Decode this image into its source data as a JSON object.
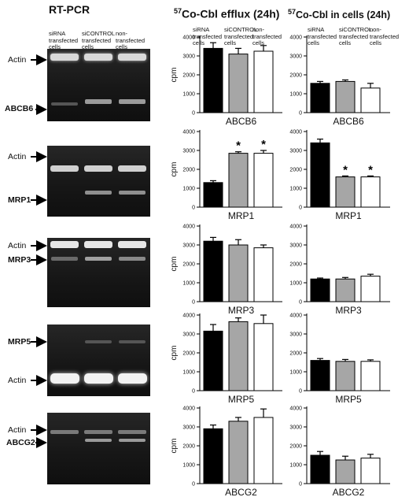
{
  "headers": {
    "rtpcr": "RT-PCR",
    "efflux_sup": "57",
    "efflux": "Co-Cbl efflux (24h)",
    "cells_sup": "57",
    "cells": "Co-Cbl in cells (24h)"
  },
  "column_labels": {
    "sirna": "siRNA\ntransfected\ncells",
    "sicontrol": "siCONTROL\ntransfected\ncells",
    "non": "non-\ntransfected\ncells"
  },
  "gel_labels": {
    "actin": "Actin",
    "abcb6": "ABCB6",
    "mrp1": "MRP1",
    "mrp3": "MRP3",
    "mrp5": "MRP5",
    "abcg2": "ABCG2"
  },
  "colors": {
    "sirna": "#000000",
    "sicontrol": "#a6a6a6",
    "non": "#ffffff",
    "gel_bg": "#1c1c1c"
  },
  "chart_data": [
    {
      "type": "bar",
      "panel": "efflux",
      "gene": "ABCB6",
      "xlabel": "ABCB6",
      "ylabel": "cpm",
      "ylim": [
        0,
        4000
      ],
      "ticks": [
        0,
        1000,
        2000,
        3000,
        4000
      ],
      "categories": [
        "siRNA transfected cells",
        "siCONTROL transfected cells",
        "non-transfected cells"
      ],
      "values": [
        3400,
        3100,
        3250
      ],
      "errors": [
        300,
        300,
        300
      ],
      "significant": [
        false,
        false,
        false
      ]
    },
    {
      "type": "bar",
      "panel": "cells",
      "gene": "ABCB6",
      "xlabel": "ABCB6",
      "ylabel": "",
      "ylim": [
        0,
        4000
      ],
      "ticks": [
        0,
        1000,
        2000,
        3000,
        4000
      ],
      "categories": [
        "siRNA transfected cells",
        "siCONTROL transfected cells",
        "non-transfected cells"
      ],
      "values": [
        1550,
        1650,
        1300
      ],
      "errors": [
        100,
        80,
        250
      ],
      "significant": [
        false,
        false,
        false
      ]
    },
    {
      "type": "bar",
      "panel": "efflux",
      "gene": "MRP1",
      "xlabel": "MRP1",
      "ylabel": "cpm",
      "ylim": [
        0,
        4000
      ],
      "ticks": [
        0,
        1000,
        2000,
        3000,
        4000
      ],
      "categories": [
        "siRNA transfected cells",
        "siCONTROL transfected cells",
        "non-transfected cells"
      ],
      "values": [
        1300,
        2850,
        2850
      ],
      "errors": [
        100,
        80,
        150
      ],
      "significant": [
        false,
        true,
        true
      ]
    },
    {
      "type": "bar",
      "panel": "cells",
      "gene": "MRP1",
      "xlabel": "MRP1",
      "ylabel": "",
      "ylim": [
        0,
        4000
      ],
      "ticks": [
        0,
        1000,
        2000,
        3000,
        4000
      ],
      "categories": [
        "siRNA transfected cells",
        "siCONTROL transfected cells",
        "non-transfected cells"
      ],
      "values": [
        3400,
        1600,
        1600
      ],
      "errors": [
        200,
        50,
        50
      ],
      "significant": [
        false,
        true,
        true
      ]
    },
    {
      "type": "bar",
      "panel": "efflux",
      "gene": "MRP3",
      "xlabel": "MRP3",
      "ylabel": "cpm",
      "ylim": [
        0,
        4000
      ],
      "ticks": [
        0,
        1000,
        2000,
        3000,
        4000
      ],
      "categories": [
        "siRNA transfected cells",
        "siCONTROL transfected cells",
        "non-transfected cells"
      ],
      "values": [
        3200,
        3000,
        2850
      ],
      "errors": [
        200,
        280,
        150
      ],
      "significant": [
        false,
        false,
        false
      ]
    },
    {
      "type": "bar",
      "panel": "cells",
      "gene": "MRP3",
      "xlabel": "MRP3",
      "ylabel": "",
      "ylim": [
        0,
        4000
      ],
      "ticks": [
        0,
        1000,
        2000,
        3000,
        4000
      ],
      "categories": [
        "siRNA transfected cells",
        "siCONTROL transfected cells",
        "non-transfected cells"
      ],
      "values": [
        1200,
        1200,
        1350
      ],
      "errors": [
        50,
        80,
        100
      ],
      "significant": [
        false,
        false,
        false
      ]
    },
    {
      "type": "bar",
      "panel": "efflux",
      "gene": "MRP5",
      "xlabel": "MRP5",
      "ylabel": "cpm",
      "ylim": [
        0,
        4000
      ],
      "ticks": [
        0,
        1000,
        2000,
        3000,
        4000
      ],
      "categories": [
        "siRNA transfected cells",
        "siCONTROL transfected cells",
        "non-transfected cells"
      ],
      "values": [
        3150,
        3650,
        3550
      ],
      "errors": [
        350,
        200,
        450
      ],
      "significant": [
        false,
        false,
        false
      ]
    },
    {
      "type": "bar",
      "panel": "cells",
      "gene": "MRP5",
      "xlabel": "MRP5",
      "ylabel": "",
      "ylim": [
        0,
        4000
      ],
      "ticks": [
        0,
        1000,
        2000,
        3000,
        4000
      ],
      "categories": [
        "siRNA transfected cells",
        "siCONTROL transfected cells",
        "non-transfected cells"
      ],
      "values": [
        1600,
        1550,
        1550
      ],
      "errors": [
        100,
        100,
        80
      ],
      "significant": [
        false,
        false,
        false
      ]
    },
    {
      "type": "bar",
      "panel": "efflux",
      "gene": "ABCG2",
      "xlabel": "ABCG2",
      "ylabel": "cpm",
      "ylim": [
        0,
        4000
      ],
      "ticks": [
        0,
        1000,
        2000,
        3000,
        4000
      ],
      "categories": [
        "siRNA transfected cells",
        "siCONTROL transfected cells",
        "non-transfected cells"
      ],
      "values": [
        2900,
        3300,
        3500
      ],
      "errors": [
        200,
        200,
        450
      ],
      "significant": [
        false,
        false,
        false
      ]
    },
    {
      "type": "bar",
      "panel": "cells",
      "gene": "ABCG2",
      "xlabel": "ABCG2",
      "ylabel": "",
      "ylim": [
        0,
        4000
      ],
      "ticks": [
        0,
        1000,
        2000,
        3000,
        4000
      ],
      "categories": [
        "siRNA transfected cells",
        "siCONTROL transfected cells",
        "non-transfected cells"
      ],
      "values": [
        1500,
        1250,
        1350
      ],
      "errors": [
        200,
        200,
        200
      ],
      "significant": [
        false,
        false,
        false
      ]
    }
  ],
  "significance_marker": "*"
}
